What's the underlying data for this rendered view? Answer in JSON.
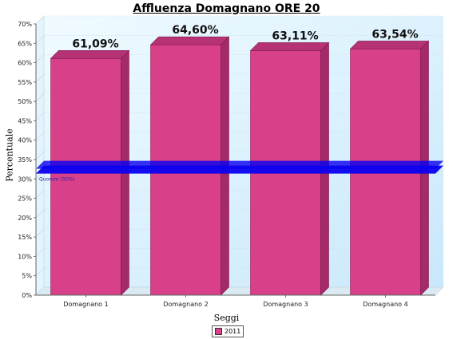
{
  "chart_data": {
    "type": "bar",
    "title": "Affluenza Domagnano ORE 20",
    "xlabel": "Seggi",
    "ylabel": "Percentuale",
    "categories": [
      "Domagnano 1",
      "Domagnano 2",
      "Domagnano 3",
      "Domagnano 4"
    ],
    "series": [
      {
        "name": "2011",
        "values": [
          61.09,
          64.6,
          63.11,
          63.54
        ]
      }
    ],
    "data_labels": [
      "61,09%",
      "64,60%",
      "63,11%",
      "63,54%"
    ],
    "ylim": [
      0,
      70
    ],
    "yticks": [
      "0%",
      "5%",
      "10%",
      "15%",
      "20%",
      "25%",
      "30%",
      "35%",
      "40%",
      "45%",
      "50%",
      "55%",
      "60%",
      "65%",
      "70%"
    ],
    "grid": true,
    "legend": "bottom",
    "threshold": {
      "label": "Quorum (32%)",
      "value": 32
    },
    "colors": {
      "bar": "#d8418a",
      "bar_side": "#a52a6a",
      "bar_top": "#b53374",
      "threshold": "#0a00f0",
      "threshold_label": "#1a1aa0",
      "plot_bg_top": "#f0fbff",
      "plot_bg_bottom": "#c9e8fb"
    }
  }
}
